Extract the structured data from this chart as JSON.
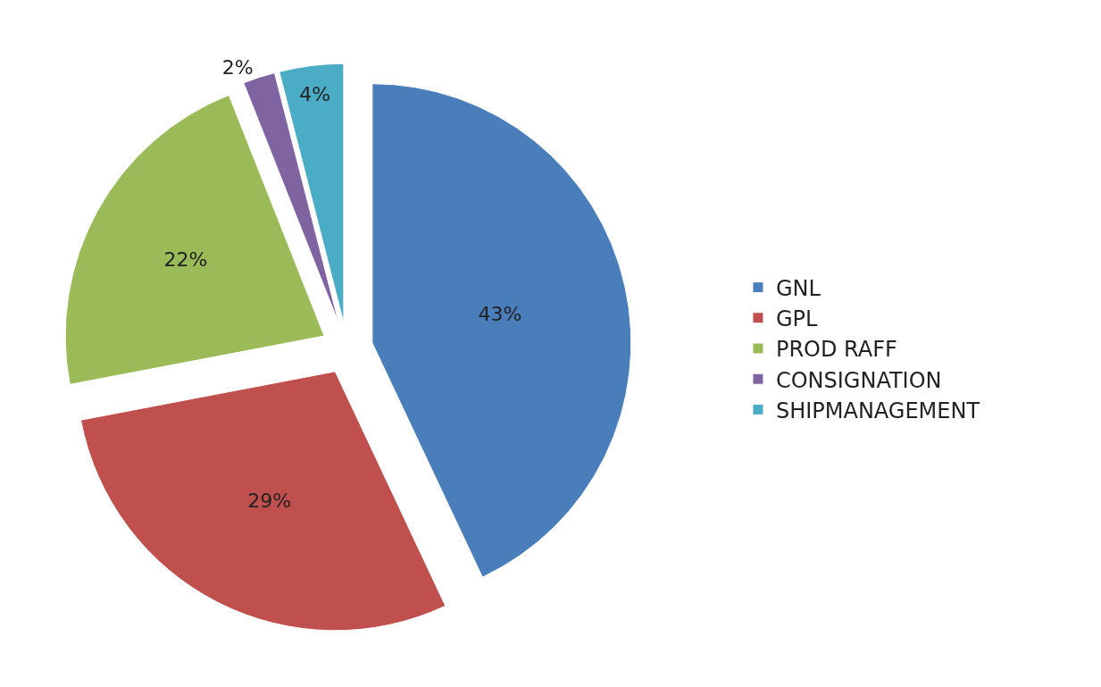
{
  "chart_data": {
    "type": "pie",
    "categories": [
      "GNL",
      "GPL",
      "PROD RAFF",
      "CONSIGNATION",
      "SHIPMANAGEMENT"
    ],
    "values": [
      43,
      29,
      22,
      2,
      4
    ],
    "value_labels": [
      "43%",
      "29%",
      "22%",
      "2%",
      "4%"
    ],
    "colors": [
      "#4a7ebb",
      "#c0504d",
      "#9bbb59",
      "#8064a2",
      "#4bacc6"
    ],
    "legend": "right"
  }
}
